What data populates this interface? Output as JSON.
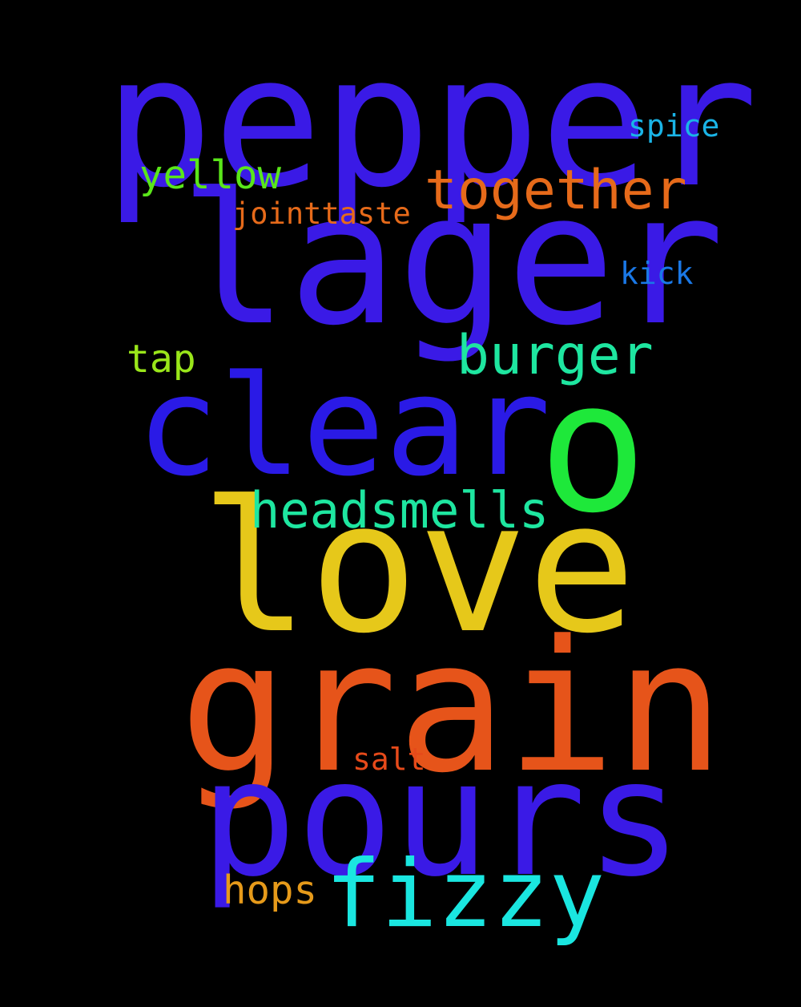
{
  "background": "#000000",
  "words": [
    {
      "id": "pepper",
      "text": "pepper",
      "color": "#3a1ae6"
    },
    {
      "id": "lager",
      "text": "lager",
      "color": "#3a1ae6"
    },
    {
      "id": "clear",
      "text": "clear",
      "color": "#2a1ae6"
    },
    {
      "id": "o",
      "text": "o",
      "color": "#1ee83a"
    },
    {
      "id": "love",
      "text": "love",
      "color": "#e6c81a"
    },
    {
      "id": "grain",
      "text": "grain",
      "color": "#e6541a"
    },
    {
      "id": "pours",
      "text": "pours",
      "color": "#3a1ae6"
    },
    {
      "id": "together",
      "text": "together",
      "color": "#e66a1a"
    },
    {
      "id": "burger",
      "text": "burger",
      "color": "#1ee6a0"
    },
    {
      "id": "fizzy",
      "text": "fizzy",
      "color": "#1ae6e0"
    },
    {
      "id": "headsmells",
      "text": "headsmells",
      "color": "#1ee6a0"
    },
    {
      "id": "yellow",
      "text": "yellow",
      "color": "#5ae61a"
    },
    {
      "id": "spice",
      "text": "spice",
      "color": "#1ab4e6"
    },
    {
      "id": "jointtaste",
      "text": "jointtaste",
      "color": "#e66a1a"
    },
    {
      "id": "kick",
      "text": "kick",
      "color": "#1a78e6"
    },
    {
      "id": "tap",
      "text": "tap",
      "color": "#9ae61a"
    },
    {
      "id": "salt",
      "text": "salt",
      "color": "#e64a1a"
    },
    {
      "id": "hops",
      "text": "hops",
      "color": "#e69a1a"
    }
  ]
}
